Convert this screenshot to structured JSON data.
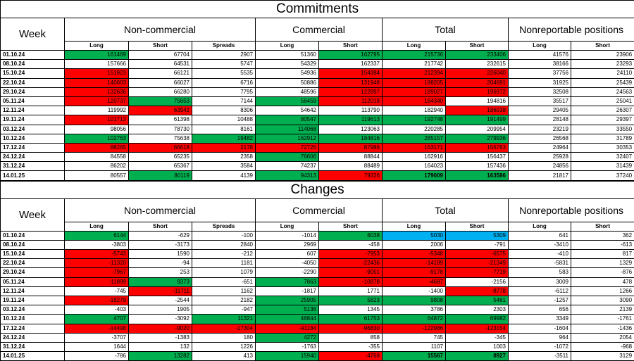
{
  "colors": {
    "red": "#ff0000",
    "green": "#00b050",
    "blue": "#00b0f0"
  },
  "commitments": {
    "title": "Commitments",
    "week_label": "Week",
    "groups": [
      "Non-commercial",
      "Commercial",
      "Total",
      "Nonreportable positions"
    ],
    "subheaders": [
      "Long",
      "Short",
      "Spreads",
      "Long",
      "Short",
      "Long",
      "Short",
      "Long",
      "Short"
    ],
    "rows": [
      {
        "date": "01.10.24",
        "cells": [
          "161469",
          "67704",
          "2907",
          "51360",
          "162795",
          "215736",
          "233406",
          "41576",
          "23906"
        ],
        "colors": [
          "green",
          "",
          "",
          "",
          "green",
          "green",
          "green",
          "",
          ""
        ]
      },
      {
        "date": "08.10.24",
        "cells": [
          "157666",
          "64531",
          "5747",
          "54329",
          "162337",
          "217742",
          "232615",
          "38166",
          "23293"
        ],
        "colors": [
          "",
          "",
          "",
          "",
          "",
          "",
          "",
          "",
          ""
        ]
      },
      {
        "date": "15.10.24",
        "cells": [
          "151923",
          "66121",
          "5535",
          "54936",
          "154384",
          "212394",
          "226040",
          "37756",
          "24110"
        ],
        "colors": [
          "red",
          "",
          "",
          "",
          "red",
          "red",
          "red",
          "",
          ""
        ]
      },
      {
        "date": "22.10.24",
        "cells": [
          "140603",
          "66027",
          "6716",
          "50886",
          "131948",
          "198205",
          "204691",
          "31925",
          "25439"
        ],
        "colors": [
          "red",
          "",
          "",
          "",
          "red",
          "red",
          "red",
          "",
          ""
        ]
      },
      {
        "date": "29.10.24",
        "cells": [
          "132636",
          "66280",
          "7795",
          "48596",
          "122897",
          "189027",
          "196972",
          "32508",
          "24563"
        ],
        "colors": [
          "red",
          "",
          "",
          "",
          "red",
          "red",
          "red",
          "",
          ""
        ]
      },
      {
        "date": "05.11.24",
        "cells": [
          "120737",
          "75653",
          "7144",
          "56459",
          "112019",
          "184340",
          "194816",
          "35517",
          "25041"
        ],
        "colors": [
          "red",
          "green",
          "",
          "green",
          "red",
          "red",
          "",
          "",
          ""
        ]
      },
      {
        "date": "12.11.24",
        "cells": [
          "119992",
          "63942",
          "8306",
          "54642",
          "113790",
          "182940",
          "186038",
          "29405",
          "26307"
        ],
        "colors": [
          "",
          "red",
          "",
          "",
          "",
          "",
          "red",
          "",
          ""
        ]
      },
      {
        "date": "19.11.24",
        "cells": [
          "101713",
          "61398",
          "10488",
          "80547",
          "119613",
          "192748",
          "191499",
          "28148",
          "29397"
        ],
        "colors": [
          "red",
          "",
          "",
          "green",
          "green",
          "green",
          "green",
          "",
          ""
        ]
      },
      {
        "date": "03.12.24",
        "cells": [
          "98056",
          "78730",
          "8161",
          "114068",
          "123063",
          "220285",
          "209954",
          "23219",
          "33550"
        ],
        "colors": [
          "",
          "",
          "",
          "green",
          "",
          "",
          "",
          "",
          ""
        ]
      },
      {
        "date": "10.12.24",
        "cells": [
          "102763",
          "75638",
          "19482",
          "162912",
          "184816",
          "285157",
          "279936",
          "26568",
          "31789"
        ],
        "colors": [
          "green",
          "",
          "green",
          "green",
          "green",
          "green",
          "green",
          "",
          ""
        ]
      },
      {
        "date": "17.12.24",
        "cells": [
          "88265",
          "66618",
          "2178",
          "72726",
          "87986",
          "163171",
          "156783",
          "24964",
          "30353"
        ],
        "colors": [
          "red",
          "red",
          "red",
          "red",
          "red",
          "red",
          "red",
          "",
          ""
        ]
      },
      {
        "date": "24.12.24",
        "cells": [
          "84558",
          "65235",
          "2358",
          "76606",
          "88844",
          "162916",
          "156437",
          "25928",
          "32407"
        ],
        "colors": [
          "",
          "",
          "",
          "green",
          "",
          "",
          "",
          "",
          ""
        ]
      },
      {
        "date": "31.12.24",
        "cells": [
          "86202",
          "65367",
          "3584",
          "74237",
          "88489",
          "164023",
          "157436",
          "24856",
          "31439"
        ],
        "colors": [
          "",
          "",
          "",
          "",
          "",
          "",
          "",
          "",
          ""
        ]
      },
      {
        "date": "14.01.25",
        "cells": [
          "80557",
          "80119",
          "4139",
          "94313",
          "79326",
          "179009",
          "163586",
          "21817",
          "37240"
        ],
        "colors": [
          "",
          "green",
          "",
          "green",
          "red",
          "green",
          "green",
          "",
          ""
        ],
        "bold": [
          false,
          false,
          false,
          false,
          false,
          true,
          true,
          false,
          false
        ]
      }
    ]
  },
  "changes": {
    "title": "Changes",
    "week_label": "Week",
    "groups": [
      "Non-commercial",
      "Commercial",
      "Total",
      "Nonreportable positions"
    ],
    "subheaders": [
      "Long",
      "Short",
      "Spreads",
      "Long",
      "Short",
      "Long",
      "Short",
      "Long",
      "Short"
    ],
    "rows": [
      {
        "date": "01.10.24",
        "cells": [
          "6144",
          "-629",
          "-100",
          "-1014",
          "6038",
          "5030",
          "5309",
          "641",
          "362"
        ],
        "colors": [
          "green",
          "",
          "",
          "",
          "green",
          "blue",
          "blue",
          "",
          ""
        ]
      },
      {
        "date": "08.10.24",
        "cells": [
          "-3803",
          "-3173",
          "2840",
          "2969",
          "-458",
          "2006",
          "-791",
          "-3410",
          "-613"
        ],
        "colors": [
          "",
          "",
          "",
          "",
          "",
          "",
          "",
          "",
          ""
        ]
      },
      {
        "date": "15.10.24",
        "cells": [
          "-5743",
          "1590",
          "-212",
          "607",
          "-7953",
          "-5348",
          "-6575",
          "-410",
          "817"
        ],
        "colors": [
          "red",
          "",
          "",
          "",
          "red",
          "red",
          "red",
          "",
          ""
        ]
      },
      {
        "date": "22.10.24",
        "cells": [
          "-11320",
          "-94",
          "1181",
          "-4050",
          "-22436",
          "-14189",
          "-21349",
          "-5831",
          "1329"
        ],
        "colors": [
          "red",
          "",
          "",
          "",
          "red",
          "red",
          "red",
          "",
          ""
        ]
      },
      {
        "date": "29.10.24",
        "cells": [
          "-7967",
          "253",
          "1079",
          "-2290",
          "-9051",
          "-9178",
          "-7719",
          "583",
          "-876"
        ],
        "colors": [
          "red",
          "",
          "",
          "",
          "red",
          "red",
          "red",
          "",
          ""
        ]
      },
      {
        "date": "05.11.24",
        "cells": [
          "-11899",
          "9373",
          "-651",
          "7863",
          "-10878",
          "-4687",
          "-2156",
          "3009",
          "478"
        ],
        "colors": [
          "red",
          "green",
          "",
          "green",
          "red",
          "red",
          "",
          "",
          ""
        ]
      },
      {
        "date": "12.11.24",
        "cells": [
          "-745",
          "-11711",
          "1162",
          "-1817",
          "1771",
          "-1400",
          "-8778",
          "-6112",
          "1266"
        ],
        "colors": [
          "",
          "red",
          "",
          "",
          "",
          "",
          "red",
          "",
          ""
        ]
      },
      {
        "date": "19.11.24",
        "cells": [
          "-18279",
          "-2544",
          "2182",
          "25905",
          "5823",
          "9808",
          "5461",
          "-1257",
          "3090"
        ],
        "colors": [
          "red",
          "",
          "",
          "green",
          "green",
          "green",
          "green",
          "",
          ""
        ]
      },
      {
        "date": "03.12.24",
        "cells": [
          "-403",
          "1905",
          "-947",
          "5136",
          "1345",
          "3786",
          "2303",
          "656",
          "2139"
        ],
        "colors": [
          "",
          "",
          "",
          "green",
          "",
          "",
          "",
          "",
          ""
        ]
      },
      {
        "date": "10.12.24",
        "cells": [
          "4707",
          "-3092",
          "11321",
          "48844",
          "61753",
          "64872",
          "69982",
          "3349",
          "-1761"
        ],
        "colors": [
          "green",
          "",
          "green",
          "green",
          "green",
          "green",
          "green",
          "",
          ""
        ]
      },
      {
        "date": "17.12.24",
        "cells": [
          "-14498",
          "-9020",
          "-17304",
          "-91184",
          "-96830",
          "-122986",
          "-123154",
          "-1604",
          "-1436"
        ],
        "colors": [
          "red",
          "red",
          "red",
          "red",
          "red",
          "red",
          "red",
          "",
          ""
        ]
      },
      {
        "date": "24.12.24",
        "cells": [
          "-3707",
          "-1383",
          "180",
          "4272",
          "858",
          "745",
          "-345",
          "964",
          "2054"
        ],
        "colors": [
          "",
          "",
          "",
          "green",
          "",
          "",
          "",
          "",
          ""
        ]
      },
      {
        "date": "31.12.24",
        "cells": [
          "1644",
          "132",
          "1226",
          "-1763",
          "-355",
          "1107",
          "1003",
          "-1072",
          "-968"
        ],
        "colors": [
          "",
          "",
          "",
          "",
          "",
          "",
          "",
          "",
          ""
        ]
      },
      {
        "date": "14.01.25",
        "cells": [
          "-786",
          "13282",
          "413",
          "15940",
          "-4768",
          "15567",
          "8927",
          "-3511",
          "3129"
        ],
        "colors": [
          "",
          "green",
          "",
          "green",
          "red",
          "green",
          "green",
          "",
          ""
        ],
        "bold": [
          false,
          false,
          false,
          false,
          false,
          true,
          true,
          false,
          false
        ]
      }
    ]
  }
}
